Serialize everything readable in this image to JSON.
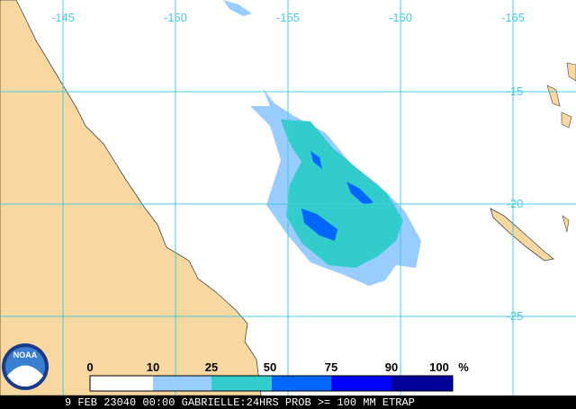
{
  "map": {
    "longitude_labels": [
      "-145",
      "-150",
      "-155",
      "-160",
      "-165"
    ],
    "latitude_labels": [
      "-15",
      "-20",
      "-25"
    ],
    "legend": {
      "labels": [
        "0",
        "10",
        "25",
        "50",
        "75",
        "90",
        "100",
        "%"
      ],
      "colors": [
        "#ffffff",
        "#99ccff",
        "#33cccc",
        "#0066ff",
        "#0000ff",
        "#000099"
      ]
    },
    "footer": "9 FEB 23040 00:00 GABRIELLE:24HRS PROB >= 100 MM ETRAP",
    "logo": "NOAA"
  }
}
